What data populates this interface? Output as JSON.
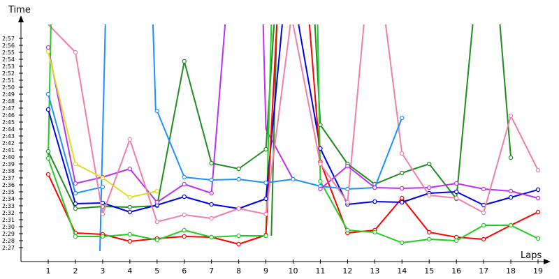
{
  "chart_data": {
    "type": "line",
    "ylabel": "Time",
    "xlabel": "Laps",
    "x": [
      1,
      2,
      3,
      4,
      5,
      6,
      7,
      8,
      9,
      10,
      11,
      12,
      13,
      14,
      15,
      16,
      17,
      18,
      19
    ],
    "xlim": [
      0,
      19.5
    ],
    "ylim": [
      146,
      179
    ],
    "yticks": [
      {
        "value": 147,
        "label": "2:27"
      },
      {
        "value": 148,
        "label": "2:28"
      },
      {
        "value": 149,
        "label": "2:29"
      },
      {
        "value": 150,
        "label": "2:30"
      },
      {
        "value": 151,
        "label": "2:31"
      },
      {
        "value": 152,
        "label": "2:32"
      },
      {
        "value": 153,
        "label": "2:33"
      },
      {
        "value": 154,
        "label": "2:34"
      },
      {
        "value": 155,
        "label": "2:35"
      },
      {
        "value": 156,
        "label": "2:36"
      },
      {
        "value": 157,
        "label": "2:37"
      },
      {
        "value": 158,
        "label": "2:38"
      },
      {
        "value": 159,
        "label": "2:39"
      },
      {
        "value": 160,
        "label": "2:40"
      },
      {
        "value": 161,
        "label": "2:41"
      },
      {
        "value": 162,
        "label": "2:42"
      },
      {
        "value": 163,
        "label": "2:43"
      },
      {
        "value": 164,
        "label": "2:44"
      },
      {
        "value": 165,
        "label": "2:45"
      },
      {
        "value": 166,
        "label": "2:46"
      },
      {
        "value": 167,
        "label": "2:47"
      },
      {
        "value": 168,
        "label": "2:48"
      },
      {
        "value": 169,
        "label": "2:49"
      },
      {
        "value": 170,
        "label": "2:50"
      },
      {
        "value": 171,
        "label": "2:51"
      },
      {
        "value": 172,
        "label": "2:52"
      },
      {
        "value": 173,
        "label": "2:53"
      },
      {
        "value": 174,
        "label": "2:54"
      },
      {
        "value": 175,
        "label": "2:55"
      },
      {
        "value": 176,
        "label": "2:56"
      },
      {
        "value": 177,
        "label": "2:57"
      }
    ],
    "grid": false,
    "series": [
      {
        "color": "#ff0000",
        "values": [
          157.5,
          149.1,
          148.9,
          147.9,
          148.3,
          148.6,
          148.5,
          147.5,
          148.8,
          null,
          159.3,
          149.1,
          149.5,
          154.1,
          149.2,
          148.5,
          148.2,
          150.2,
          152.1
        ]
      },
      {
        "color": "#22cc22",
        "values": [
          159.8,
          148.6,
          148.6,
          148.9,
          148.1,
          149.5,
          148.5,
          148.7,
          148.7,
          null,
          156.5,
          149.5,
          149.2,
          147.7,
          148.2,
          148.0,
          150.2,
          150.2,
          148.3
        ]
      },
      {
        "color": "#228b22",
        "values": [
          160.8,
          152.6,
          152.9,
          152.8,
          153.0,
          173.7,
          159.1,
          158.3,
          161.1,
          null,
          164.6,
          159.0,
          156.1,
          157.7,
          159.0,
          154.0,
          null,
          159.9,
          null
        ]
      },
      {
        "color": "#0000ee",
        "values": [
          166.8,
          153.3,
          153.4,
          152.1,
          153.1,
          154.3,
          153.2,
          152.6,
          154.0,
          null,
          161.2,
          153.2,
          153.6,
          153.5,
          154.8,
          155.0,
          153.1,
          154.2,
          155.3
        ]
      },
      {
        "color": "#1e90ff",
        "values": [
          169.0,
          154.8,
          155.7,
          null,
          166.6,
          157.1,
          156.7,
          156.8,
          156.3,
          156.8,
          155.8,
          155.4,
          155.6,
          165.6,
          null,
          null,
          null,
          null,
          null
        ]
      },
      {
        "color": "#bb33ee",
        "values": [
          175.7,
          156.2,
          157.1,
          158.3,
          153.5,
          156.1,
          154.8,
          null,
          null,
          null,
          155.4,
          158.7,
          155.6,
          155.5,
          155.6,
          156.2,
          155.4,
          155.1,
          154.1
        ]
      },
      {
        "color": "#f080a8",
        "values": [
          null,
          175.0,
          151.8,
          162.5,
          150.7,
          151.7,
          151.2,
          152.6,
          151.8,
          null,
          159.0,
          153.5,
          null,
          160.5,
          154.5,
          154.1,
          152.0,
          165.9,
          158.1
        ]
      },
      {
        "color": "#dddd22",
        "values": [
          175.1,
          159.0,
          157.0,
          154.2,
          155.1,
          null,
          null,
          null,
          null,
          null,
          null,
          null,
          null,
          null,
          null,
          null,
          null,
          null,
          null
        ]
      }
    ],
    "offchart_segments": [
      {
        "color": "#1e90ff",
        "from": [
          2.9,
          146.5
        ],
        "to": [
          3.1,
          179
        ],
        "note": "spike above chart top"
      },
      {
        "color": "#1e90ff",
        "from": [
          4.85,
          179
        ],
        "to": [
          4.95,
          166.6
        ]
      },
      {
        "color": "#bb33ee",
        "from": [
          7.0,
          154.8
        ],
        "to": [
          7.5,
          179
        ]
      },
      {
        "color": "#bb33ee",
        "from": [
          8.9,
          179
        ],
        "to": [
          9.0,
          164.0
        ]
      },
      {
        "color": "#bb33ee",
        "from": [
          9.0,
          164.0
        ],
        "to": [
          10.0,
          156.8
        ]
      },
      {
        "color": "#228b22",
        "from": [
          9.0,
          161.1
        ],
        "to": [
          9.3,
          179
        ]
      },
      {
        "color": "#228b22",
        "from": [
          9.4,
          179
        ],
        "to": [
          9.2,
          148.7
        ]
      },
      {
        "color": "#22cc22",
        "from": [
          9.0,
          148.7
        ],
        "to": [
          9.2,
          179
        ]
      },
      {
        "color": "#0000ee",
        "from": [
          9.0,
          154.0
        ],
        "to": [
          9.6,
          179
        ]
      },
      {
        "color": "#0000ee",
        "from": [
          10.2,
          179
        ],
        "to": [
          11.0,
          161.2
        ]
      },
      {
        "color": "#ff0000",
        "from": [
          9.0,
          148.8
        ],
        "to": [
          9.4,
          179
        ]
      },
      {
        "color": "#ff0000",
        "from": [
          10.6,
          179
        ],
        "to": [
          11.0,
          159.3
        ]
      },
      {
        "color": "#f080a8",
        "from": [
          1.0,
          179
        ],
        "to": [
          2.0,
          175.0
        ]
      },
      {
        "color": "#f080a8",
        "from": [
          9.0,
          151.8
        ],
        "to": [
          9.9,
          179
        ]
      },
      {
        "color": "#f080a8",
        "from": [
          10.0,
          179
        ],
        "to": [
          11.0,
          159.0
        ]
      },
      {
        "color": "#f080a8",
        "from": [
          12.0,
          153.5
        ],
        "to": [
          12.6,
          179
        ]
      },
      {
        "color": "#f080a8",
        "from": [
          13.4,
          179
        ],
        "to": [
          14.0,
          160.5
        ]
      },
      {
        "color": "#22cc22",
        "from": [
          1.0,
          159.8
        ],
        "to": [
          1.1,
          179
        ],
        "note": "upward leaves top"
      },
      {
        "color": "#228b22",
        "from": [
          10.8,
          179
        ],
        "to": [
          11.0,
          164.6
        ]
      },
      {
        "color": "#22cc22",
        "from": [
          10.9,
          179
        ],
        "to": [
          11.0,
          156.5
        ]
      },
      {
        "color": "#228b22",
        "from": [
          16.0,
          154.0
        ],
        "to": [
          16.6,
          179
        ]
      },
      {
        "color": "#228b22",
        "from": [
          17.6,
          179
        ],
        "to": [
          18.0,
          159.9
        ]
      }
    ]
  }
}
